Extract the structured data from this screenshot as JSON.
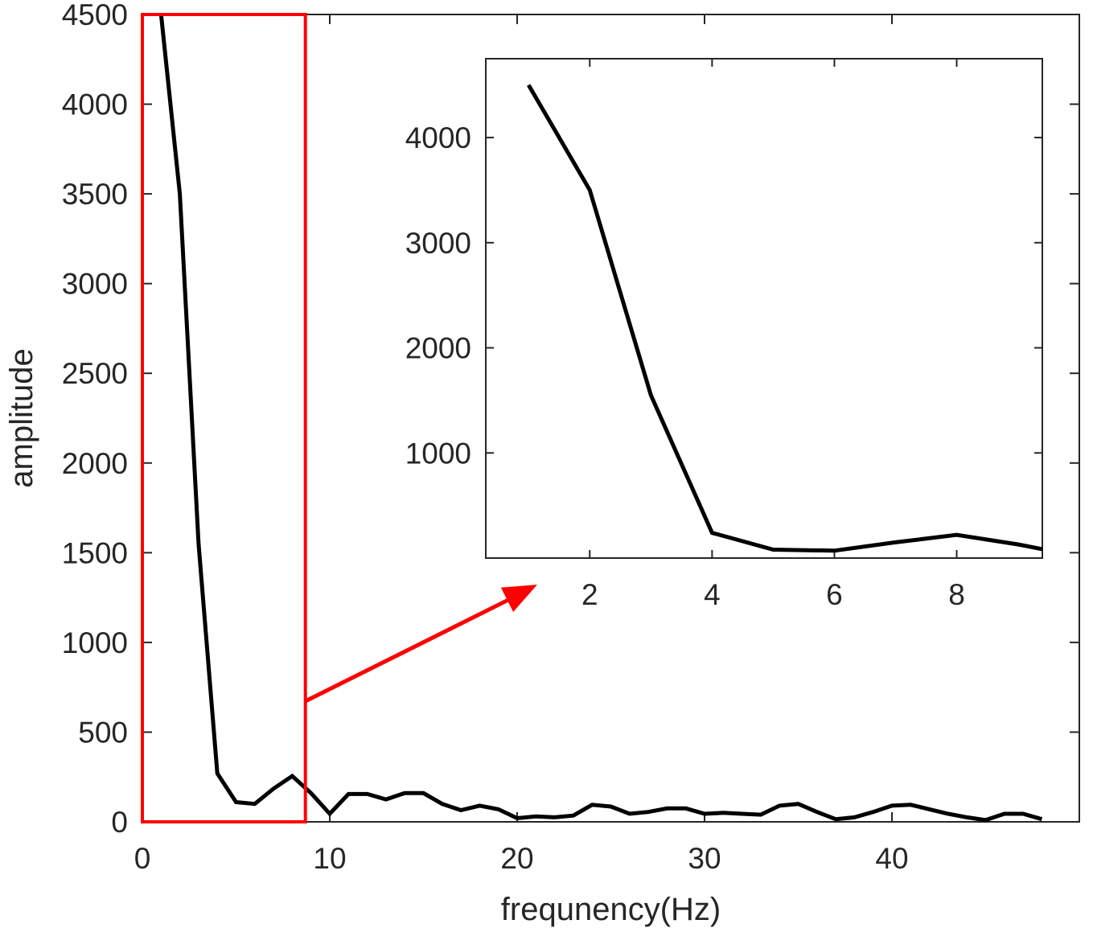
{
  "chart_data": [
    {
      "type": "line",
      "panel": "main",
      "title": "",
      "xlabel": "frequnency(Hz)",
      "ylabel": "amplitude",
      "xlim": [
        0,
        50
      ],
      "ylim": [
        0,
        4500
      ],
      "xticks": [
        "0",
        "10",
        "20",
        "30",
        "40"
      ],
      "yticks": [
        "0",
        "500",
        "1000",
        "1500",
        "2000",
        "2500",
        "3000",
        "3500",
        "4000",
        "4500"
      ],
      "grid": false,
      "series": [
        {
          "color": "#000000",
          "x": [
            1,
            2,
            3,
            4,
            5,
            6,
            7,
            8,
            9,
            10,
            11,
            12,
            13,
            14,
            15,
            16,
            17,
            18,
            19,
            20,
            21,
            22,
            23,
            24,
            25,
            26,
            27,
            28,
            29,
            30,
            31,
            32,
            33,
            34,
            35,
            36,
            37,
            38,
            39,
            40,
            41,
            42,
            43,
            44,
            45,
            46,
            47,
            48
          ],
          "y": [
            4500,
            3500,
            1550,
            270,
            110,
            100,
            185,
            255,
            160,
            45,
            155,
            155,
            125,
            160,
            160,
            100,
            65,
            90,
            70,
            20,
            30,
            25,
            35,
            95,
            85,
            45,
            55,
            75,
            75,
            45,
            50,
            45,
            40,
            90,
            100,
            55,
            15,
            25,
            55,
            90,
            95,
            70,
            45,
            25,
            10,
            45,
            45,
            15
          ]
        }
      ]
    },
    {
      "type": "line",
      "panel": "inset",
      "title": "",
      "xlim": [
        0.3,
        9.4
      ],
      "ylim": [
        0,
        4750
      ],
      "xticks": [
        "2",
        "4",
        "6",
        "8"
      ],
      "yticks": [
        "1000",
        "2000",
        "3000",
        "4000"
      ],
      "grid": false,
      "series": [
        {
          "color": "#000000",
          "x": [
            1,
            2,
            3,
            4,
            5,
            6,
            7,
            8,
            9,
            9.4
          ],
          "y": [
            4500,
            3500,
            1550,
            240,
            80,
            70,
            150,
            220,
            130,
            85
          ]
        }
      ]
    }
  ],
  "annotation": {
    "zoom_box_color": "#ff0000",
    "zoom_box_x": [
      0,
      8.7
    ],
    "zoom_box_y": [
      0,
      4500
    ],
    "arrow_color": "#ff0000"
  }
}
